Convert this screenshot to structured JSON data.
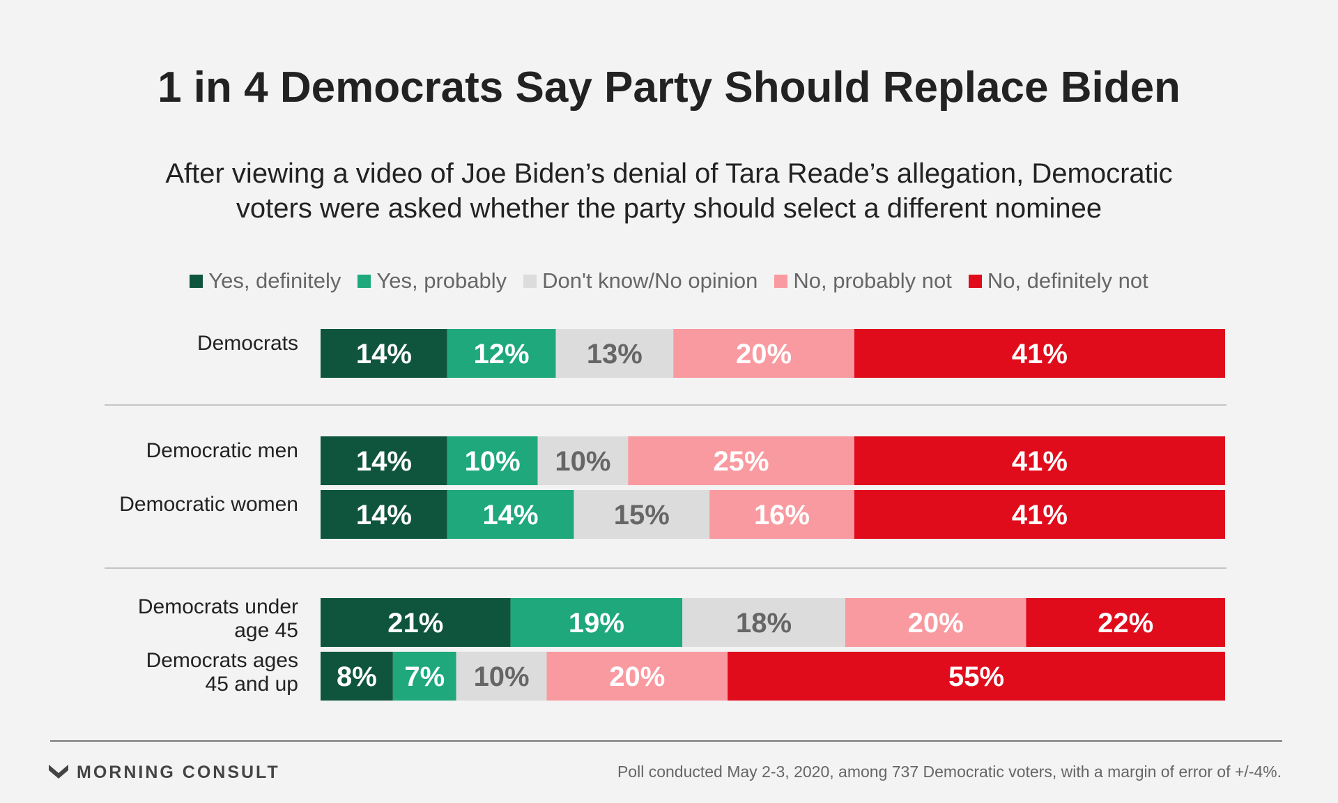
{
  "header": {
    "title": "1 in 4 Democrats Say Party Should Replace Biden",
    "subtitle_line1": "After viewing a video of Joe Biden’s denial of Tara Reade’s allegation, Democratic",
    "subtitle_line2": "voters were asked whether the party should select a different nominee"
  },
  "legend": [
    {
      "label": "Yes, definitely",
      "color": "#0f553e"
    },
    {
      "label": "Yes, probably",
      "color": "#1ea87c"
    },
    {
      "label": "Don't know/No opinion",
      "color": "#dcdcdc"
    },
    {
      "label": "No, probably not",
      "color": "#f99aa0"
    },
    {
      "label": "No, definitely not",
      "color": "#e00c1c"
    }
  ],
  "chart_data": {
    "type": "bar",
    "orientation": "horizontal",
    "stacked": true,
    "unit": "%",
    "categories": [
      "Democrats",
      "Democratic men",
      "Democratic women",
      "Democrats under age 45",
      "Democrats ages 45 and up"
    ],
    "category_labels": [
      [
        "Democrats"
      ],
      [
        "Democratic men"
      ],
      [
        "Democratic women"
      ],
      [
        "Democrats under",
        "age 45"
      ],
      [
        "Democrats ages",
        "45 and up"
      ]
    ],
    "groups": [
      [
        0
      ],
      [
        1,
        2
      ],
      [
        3,
        4
      ]
    ],
    "series": [
      {
        "name": "Yes, definitely",
        "values": [
          14,
          14,
          14,
          21,
          8
        ]
      },
      {
        "name": "Yes, probably",
        "values": [
          12,
          10,
          14,
          19,
          7
        ]
      },
      {
        "name": "Don't know/No opinion",
        "values": [
          13,
          10,
          15,
          18,
          10
        ]
      },
      {
        "name": "No, probably not",
        "values": [
          20,
          25,
          16,
          20,
          20
        ]
      },
      {
        "name": "No, definitely not",
        "values": [
          41,
          41,
          41,
          22,
          55
        ]
      }
    ],
    "label_colors": [
      "#ffffff",
      "#ffffff",
      "#666666",
      "#ffffff",
      "#ffffff"
    ],
    "legend_position": "top"
  },
  "footer": {
    "brand": "MORNING CONSULT",
    "note": "Poll conducted May 2-3, 2020, among 737 Democratic voters, with a margin of error of +/-4%."
  }
}
